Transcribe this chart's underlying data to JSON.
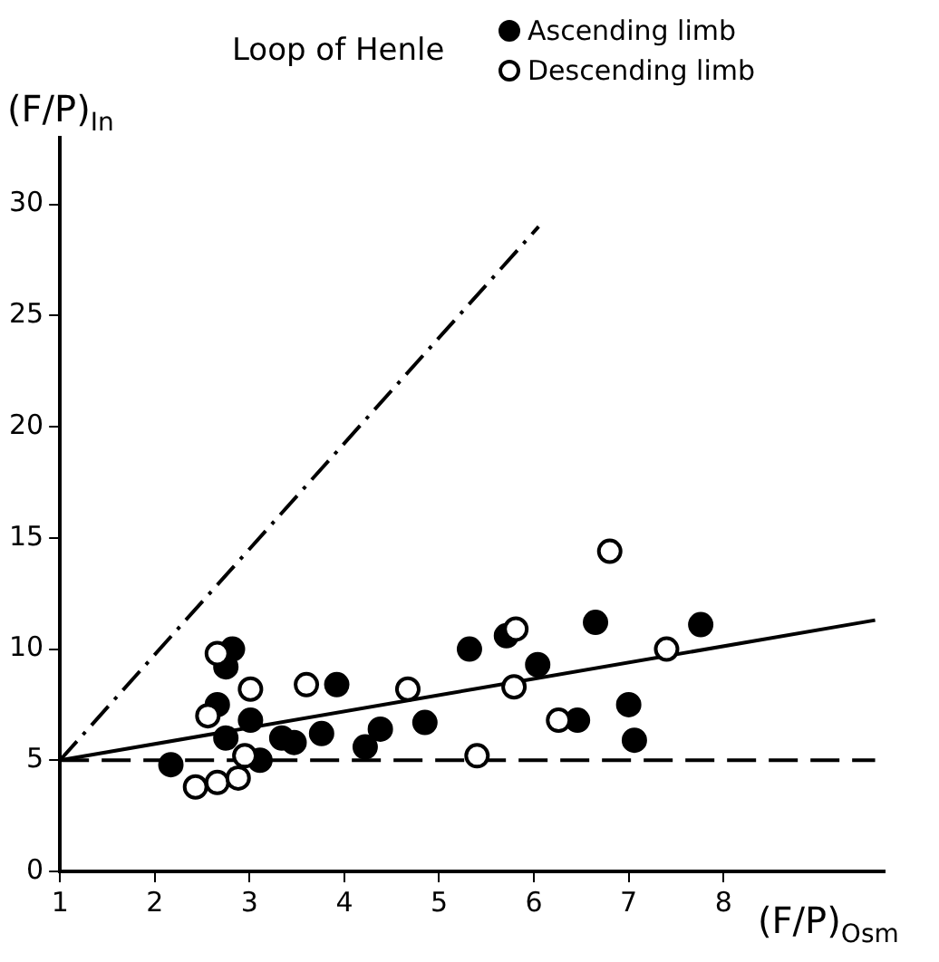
{
  "chart_data": {
    "type": "scatter",
    "title": "Loop of Henle",
    "xlabel": "(F/P)$_{Osm}$",
    "ylabel": "(F/P)$_{In}$",
    "xlim": [
      1,
      9.7
    ],
    "ylim": [
      0,
      33
    ],
    "xticks": [
      1,
      2,
      3,
      4,
      5,
      6,
      7,
      8
    ],
    "yticks": [
      0,
      5,
      10,
      15,
      20,
      25,
      30
    ],
    "grid": false,
    "legend": "top",
    "marker": "circle",
    "series": [
      {
        "name": "Ascending limb",
        "color": "#000000",
        "x": [
          2.17,
          2.82,
          2.75,
          2.66,
          3.01,
          2.75,
          3.11,
          3.34,
          3.47,
          3.76,
          3.92,
          4.22,
          4.38,
          4.85,
          5.32,
          5.71,
          6.04,
          6.65,
          7.76,
          6.46,
          7.0,
          7.06
        ],
        "values": [
          4.8,
          10.0,
          9.2,
          7.5,
          6.8,
          6.0,
          5.0,
          6.0,
          5.8,
          6.2,
          8.4,
          5.6,
          6.4,
          6.7,
          10.0,
          10.6,
          9.3,
          11.2,
          11.1,
          6.8,
          7.5,
          5.9
        ]
      },
      {
        "name": "Descending limb",
        "color": "#ffffff",
        "x": [
          2.66,
          3.01,
          3.6,
          4.67,
          2.56,
          2.95,
          2.43,
          2.66,
          2.88,
          6.8,
          5.81,
          5.79,
          7.4,
          6.26,
          5.4
        ],
        "values": [
          9.8,
          8.2,
          8.4,
          8.2,
          7.0,
          5.2,
          3.8,
          4.0,
          4.2,
          14.4,
          10.9,
          8.3,
          10.0,
          6.8,
          5.2
        ]
      },
      {
        "type": "line",
        "color": "#000000",
        "line_style": "dashdot",
        "marker": "none",
        "x": [
          1,
          6.05
        ],
        "values": [
          5,
          29
        ]
      },
      {
        "type": "line",
        "color": "#000000",
        "line_style": "solid",
        "marker": "none",
        "x": [
          1,
          9.6
        ],
        "values": [
          5,
          11.3
        ]
      },
      {
        "type": "line",
        "color": "#000000",
        "line_style": "dashed",
        "marker": "none",
        "x": [
          1,
          9.6
        ],
        "values": [
          5,
          5
        ]
      }
    ]
  }
}
